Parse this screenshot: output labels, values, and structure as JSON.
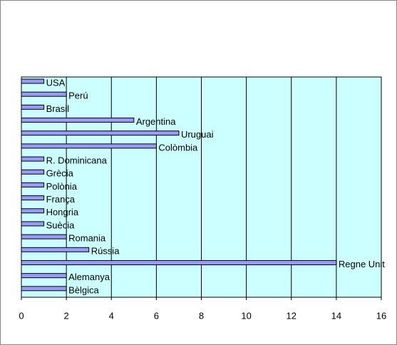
{
  "chart_data": {
    "type": "bar",
    "orientation": "horizontal",
    "categories": [
      "USA",
      "Perú",
      "Brasil",
      "Argentina",
      "Uruguai",
      "Colòmbia",
      "R. Dominicana",
      "Grècia",
      "Polònia",
      "França",
      "Hongria",
      "Suècia",
      "Romania",
      "Rússia",
      "Regne Unit",
      "Alemanya",
      "Bèlgica"
    ],
    "values": [
      1,
      2,
      1,
      5,
      7,
      6,
      1,
      1,
      1,
      1,
      1,
      1,
      2,
      3,
      14,
      2,
      2
    ],
    "color": "#9999ff",
    "background": "#ccffff",
    "xlim": [
      0,
      16
    ],
    "xticks": [
      0,
      2,
      4,
      6,
      8,
      10,
      12,
      14,
      16
    ],
    "grid": true
  }
}
